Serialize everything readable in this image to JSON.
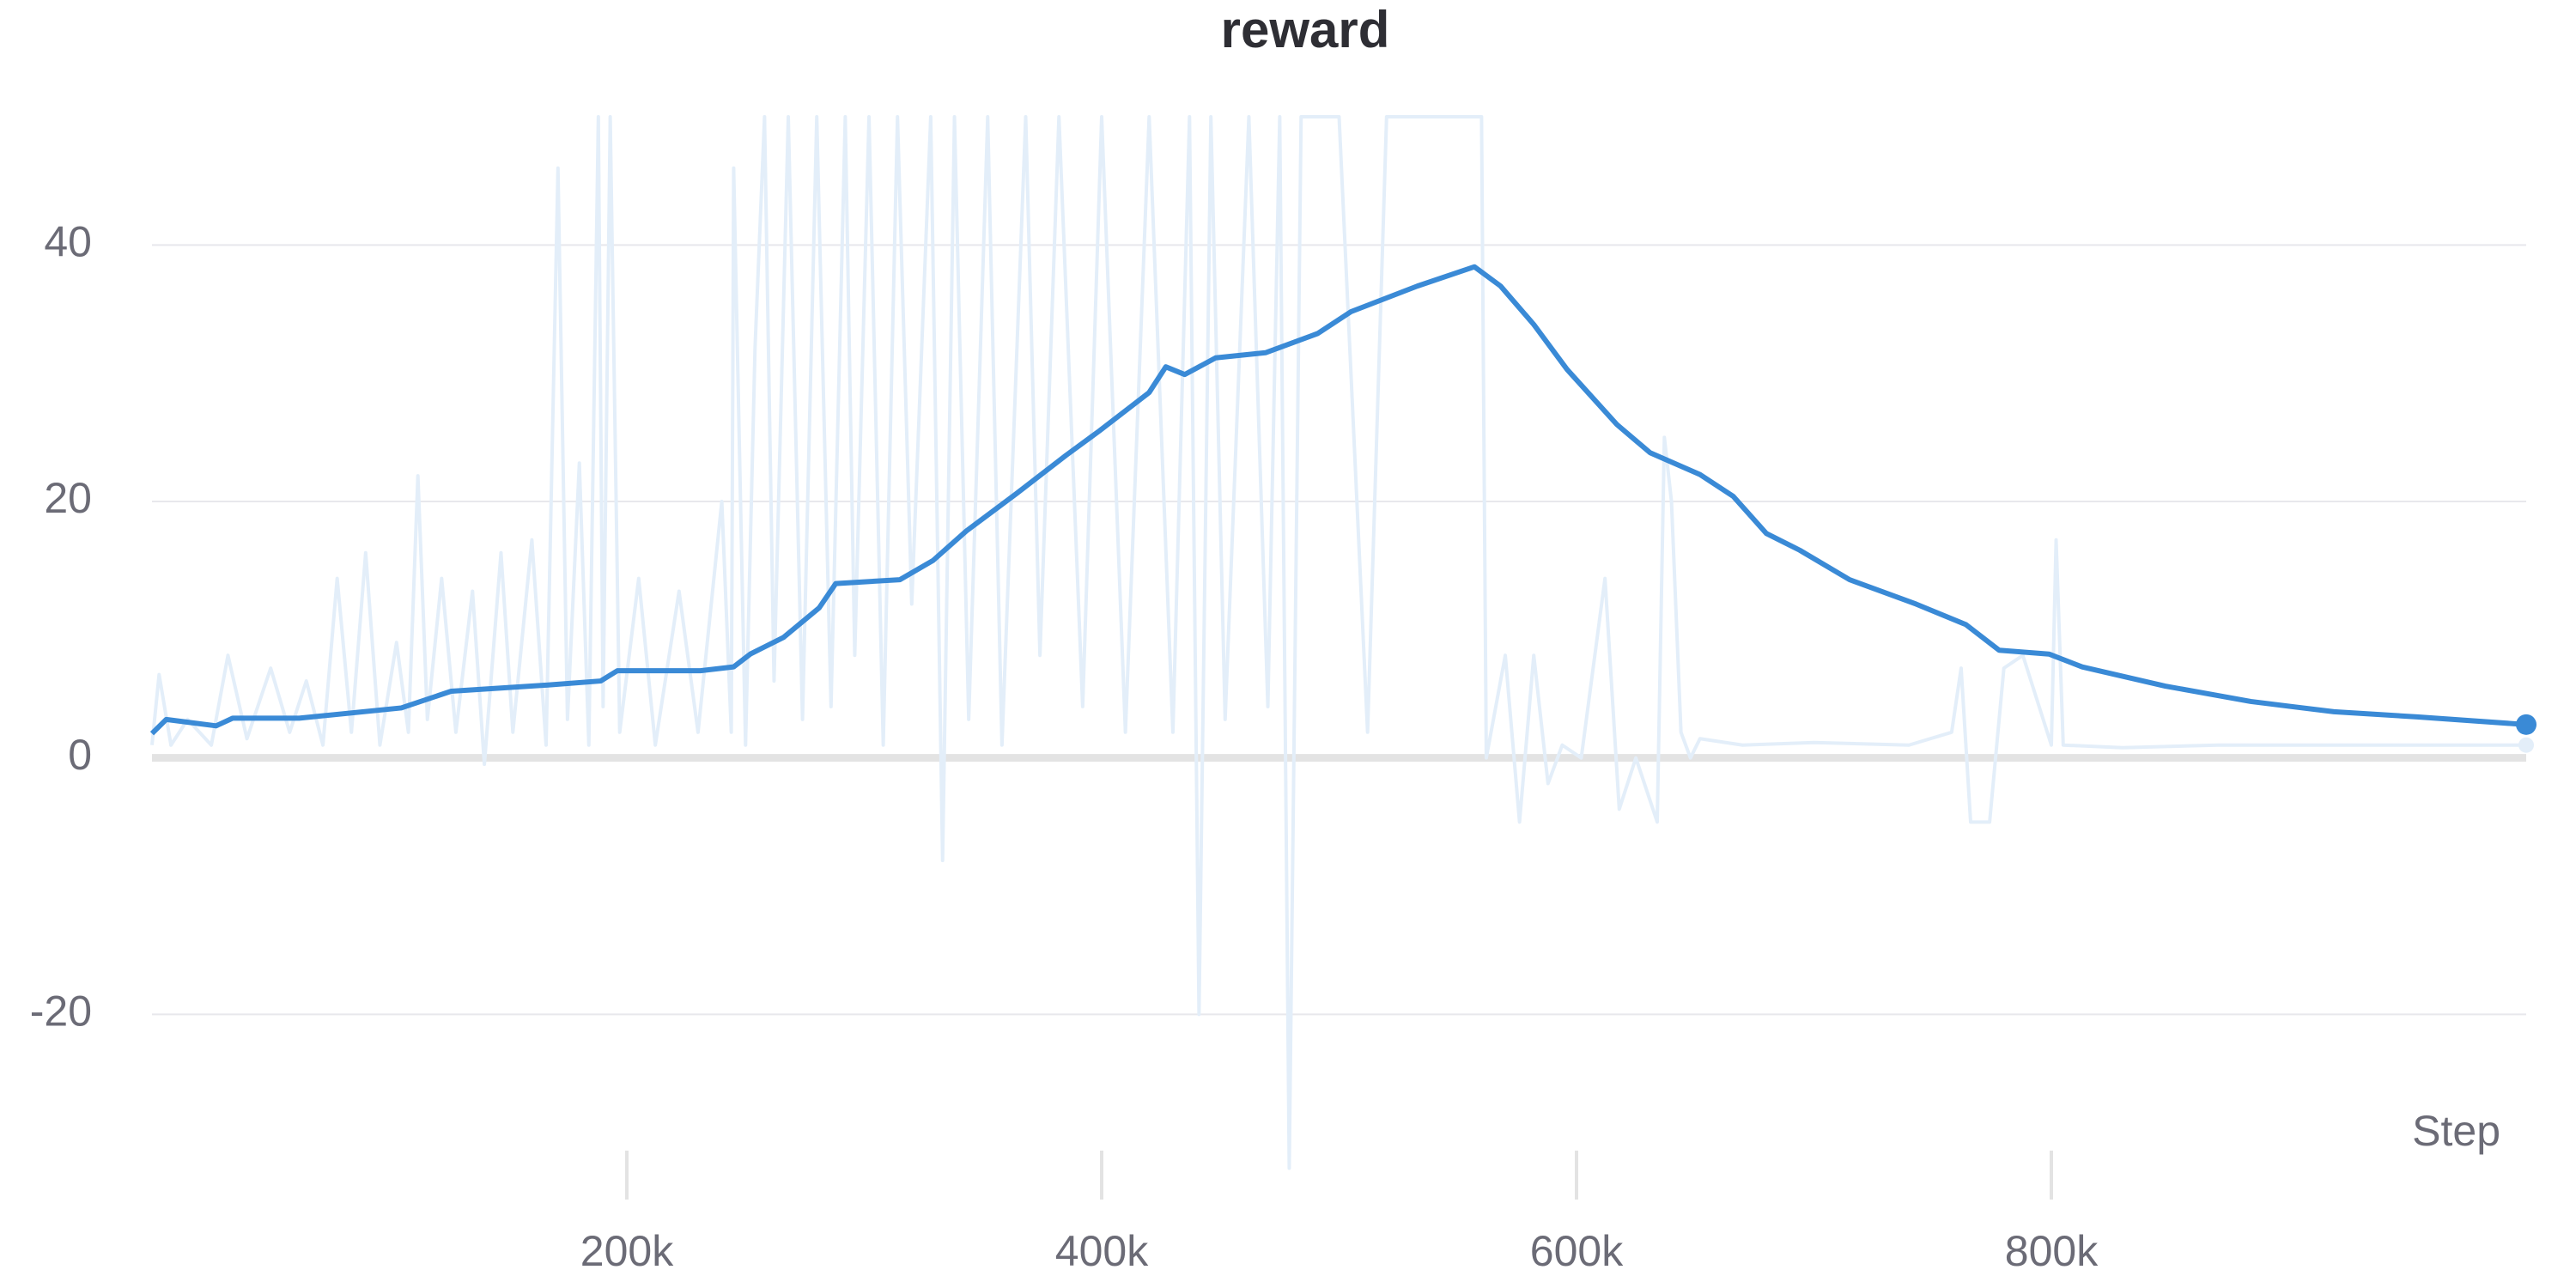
{
  "chart_data": {
    "type": "line",
    "title": "reward",
    "xlabel": "Step",
    "xlim": [
      0,
      1000000
    ],
    "xticks": [
      {
        "value": 200000,
        "label": "200k"
      },
      {
        "value": 400000,
        "label": "400k"
      },
      {
        "value": 600000,
        "label": "600k"
      },
      {
        "value": 800000,
        "label": "800k"
      }
    ],
    "ylim": [
      -32.5,
      50
    ],
    "yticks": [
      -20,
      0,
      20,
      40
    ],
    "grid": true,
    "series": [
      {
        "color": "#e3eef9",
        "x": [
          0,
          3000,
          8000,
          15000,
          25000,
          32000,
          40000,
          50000,
          58000,
          65000,
          72000,
          78000,
          84000,
          90000,
          96000,
          103000,
          108000,
          112000,
          116000,
          122000,
          128000,
          135000,
          140000,
          147000,
          152000,
          160000,
          166000,
          171000,
          175000,
          180000,
          184000,
          188000,
          190000,
          193000,
          197000,
          205000,
          212000,
          222000,
          230000,
          240000,
          244000,
          245000,
          250000,
          254000,
          258000,
          262000,
          268000,
          274000,
          280000,
          286000,
          292000,
          296000,
          302000,
          308000,
          314000,
          320000,
          328000,
          333000,
          338000,
          344000,
          352000,
          358000,
          368000,
          374000,
          382000,
          392000,
          400000,
          410000,
          420000,
          430000,
          437000,
          441000,
          446000,
          452000,
          462000,
          470000,
          475000,
          479000,
          484000,
          490000,
          500000,
          512000,
          520000,
          530000,
          545000,
          560000,
          562000,
          570000,
          576000,
          582000,
          588000,
          594000,
          602000,
          612000,
          618000,
          625000,
          634000,
          637000,
          640000,
          644000,
          648000,
          652000,
          670000,
          700000,
          740000,
          758000,
          762000,
          766000,
          774000,
          780000,
          788000,
          800000,
          802000,
          805000,
          830000,
          870000,
          920000,
          960000,
          1000000
        ],
        "values": [
          1,
          6.5,
          1,
          3,
          1,
          8,
          1.5,
          7,
          2,
          6,
          1,
          14,
          2,
          16,
          1,
          9,
          2,
          22,
          3,
          14,
          2,
          13,
          -0.5,
          16,
          2,
          17,
          1,
          46,
          3,
          23,
          1,
          50,
          4,
          50,
          2,
          14,
          1,
          13,
          2,
          20,
          2,
          46,
          1,
          32,
          50,
          6,
          50,
          3,
          50,
          4,
          50,
          8,
          50,
          1,
          50,
          12,
          50,
          -8,
          50,
          3,
          50,
          1,
          50,
          8,
          50,
          4,
          50,
          2,
          50,
          2,
          50,
          -20,
          50,
          3,
          50,
          4,
          50,
          -32,
          50,
          50,
          50,
          2,
          50,
          50,
          50,
          50,
          0,
          8,
          -5,
          8,
          -2,
          1,
          0,
          14,
          -4,
          0,
          -5,
          25,
          20,
          2,
          0,
          1.5,
          1,
          1.2,
          1,
          2,
          7,
          -5,
          -5,
          7,
          8,
          1,
          17,
          1,
          0.8,
          1,
          1,
          1,
          1
        ]
      },
      {
        "color": "#3a8ad6",
        "x": [
          0,
          6000,
          27000,
          34000,
          62000,
          105000,
          126000,
          168000,
          189000,
          196000,
          231000,
          245000,
          252000,
          266000,
          281000,
          288000,
          315000,
          329000,
          343000,
          364000,
          385000,
          399000,
          420000,
          427000,
          435000,
          448000,
          469000,
          491000,
          505000,
          533000,
          557000,
          568000,
          582000,
          596000,
          617000,
          631000,
          652000,
          666000,
          680000,
          694000,
          715000,
          743000,
          764000,
          778000,
          799000,
          813000,
          848000,
          884000,
          919000,
          954000,
          1000000
        ],
        "values": [
          1.9,
          3.0,
          2.5,
          3.1,
          3.1,
          3.9,
          5.2,
          5.7,
          6.0,
          6.8,
          6.8,
          7.1,
          8.1,
          9.4,
          11.7,
          13.6,
          13.9,
          15.4,
          17.7,
          20.6,
          23.6,
          25.5,
          28.5,
          30.5,
          29.9,
          31.2,
          31.6,
          33.1,
          34.8,
          36.8,
          38.3,
          36.8,
          33.8,
          30.3,
          26.0,
          23.8,
          22.1,
          20.4,
          17.5,
          16.2,
          13.9,
          12.0,
          10.4,
          8.4,
          8.1,
          7.1,
          5.6,
          4.4,
          3.6,
          3.2,
          2.6
        ]
      }
    ]
  }
}
